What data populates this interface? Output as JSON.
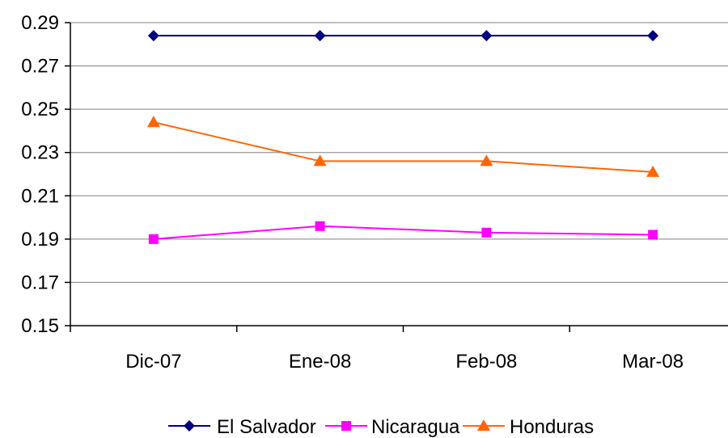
{
  "chart_data": {
    "type": "line",
    "title": "",
    "xlabel": "",
    "ylabel": "",
    "categories": [
      "Dic-07",
      "Ene-08",
      "Feb-08",
      "Mar-08"
    ],
    "ylim": [
      0.15,
      0.29
    ],
    "yticks": [
      "0.29",
      "0.27",
      "0.25",
      "0.23",
      "0.21",
      "0.19",
      "0.17",
      "0.15"
    ],
    "grid": true,
    "legend_position": "bottom",
    "series": [
      {
        "name": "El Salvador",
        "values": [
          0.284,
          0.284,
          0.284,
          0.284
        ],
        "color": "#000080",
        "marker": "diamond"
      },
      {
        "name": "Nicaragua",
        "values": [
          0.19,
          0.196,
          0.193,
          0.192
        ],
        "color": "#FF00FF",
        "marker": "square"
      },
      {
        "name": "Honduras",
        "values": [
          0.244,
          0.226,
          0.226,
          0.221
        ],
        "color": "#FF6600",
        "marker": "triangle"
      }
    ]
  }
}
